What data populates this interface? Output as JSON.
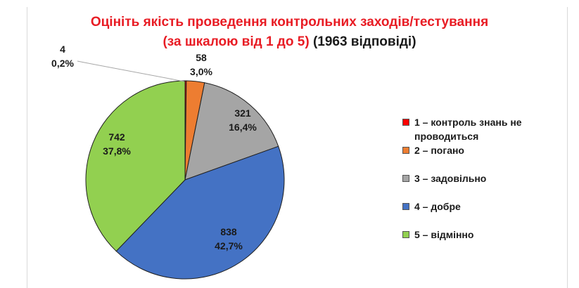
{
  "chart_data": {
    "type": "pie",
    "title_line1": "Оцініть якість проведення контрольних заходів/тестування",
    "title_line2_red": "(за шкалою від 1 до 5)",
    "title_line2_black": "(1963 відповіді)",
    "slices": [
      {
        "label": "1 – контроль знань не проводиться",
        "value": 4,
        "percent": "0,2%",
        "color": "#ff0000"
      },
      {
        "label": "2 – погано",
        "value": 58,
        "percent": "3,0%",
        "color": "#ed7d31"
      },
      {
        "label": "3 – задовільно",
        "value": 321,
        "percent": "16,4%",
        "color": "#a5a5a5"
      },
      {
        "label": "4 – добре",
        "value": 838,
        "percent": "42,7%",
        "color": "#4472c4"
      },
      {
        "label": "5 – відмінно",
        "value": 742,
        "percent": "37,8%",
        "color": "#92d050"
      }
    ],
    "legend_position": "right"
  }
}
